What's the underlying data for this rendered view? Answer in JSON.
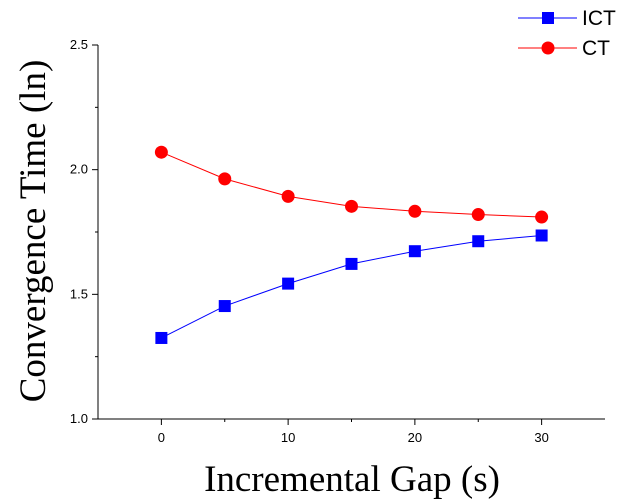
{
  "chart_data": {
    "type": "line",
    "title": "",
    "xlabel": "Incremental Gap (s)",
    "ylabel": "Convergence Time (ln)",
    "x": [
      0,
      5,
      10,
      15,
      20,
      25,
      30
    ],
    "xlim": [
      -5,
      35
    ],
    "ylim": [
      1.0,
      2.5
    ],
    "xticks": [
      "0",
      "10",
      "20",
      "30"
    ],
    "yticks": [
      "1.0",
      "1.5",
      "2.0",
      "2.5"
    ],
    "grid": false,
    "legend_position": "top-right",
    "series": [
      {
        "name": "ICT",
        "color": "#0000ff",
        "marker": "square",
        "values": [
          1.325,
          1.453,
          1.543,
          1.622,
          1.673,
          1.713,
          1.736
        ]
      },
      {
        "name": "CT",
        "color": "#ff0000",
        "marker": "circle",
        "values": [
          2.07,
          1.963,
          1.893,
          1.853,
          1.833,
          1.82,
          1.81
        ]
      }
    ]
  }
}
